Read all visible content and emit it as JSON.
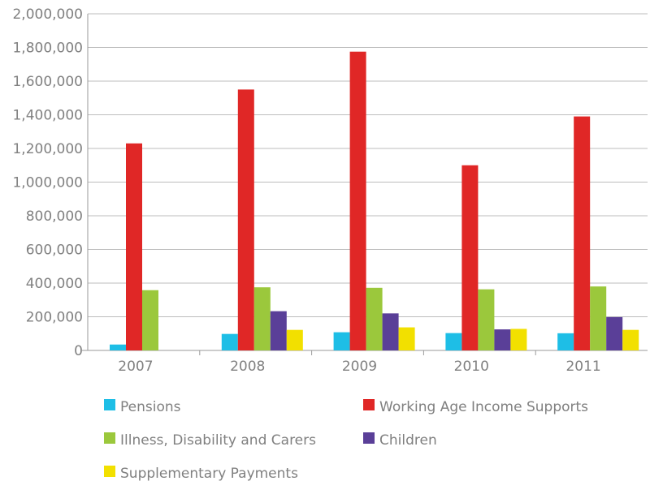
{
  "chart_data": {
    "type": "bar",
    "title": "",
    "xlabel": "",
    "ylabel": "",
    "categories": [
      "2007",
      "2008",
      "2009",
      "2010",
      "2011"
    ],
    "ylim": [
      0,
      2000000
    ],
    "yticks": [
      0,
      200000,
      400000,
      600000,
      800000,
      1000000,
      1200000,
      1400000,
      1600000,
      1800000,
      2000000
    ],
    "ytick_labels": [
      "0",
      "200,000",
      "400,000",
      "600,000",
      "800,000",
      "1,000,000",
      "1,200,000",
      "1,400,000",
      "1,600,000",
      "1,800,000",
      "2,000,000"
    ],
    "grid": true,
    "legend_position": "bottom",
    "series": [
      {
        "name": "Pensions",
        "color": "#1ebee6",
        "values": [
          35000,
          98000,
          108000,
          103000,
          102000
        ]
      },
      {
        "name": "Working Age Income Supports",
        "color": "#e02726",
        "values": [
          1230000,
          1550000,
          1775000,
          1100000,
          1390000
        ]
      },
      {
        "name": "Illness, Disability and Carers",
        "color": "#9bc83c",
        "values": [
          358000,
          375000,
          372000,
          363000,
          380000
        ]
      },
      {
        "name": "Children",
        "color": "#5a3f98",
        "values": [
          0,
          233000,
          220000,
          125000,
          198000
        ]
      },
      {
        "name": "Supplementary Payments",
        "color": "#f2e000",
        "values": [
          0,
          122000,
          137000,
          128000,
          122000
        ]
      }
    ]
  }
}
